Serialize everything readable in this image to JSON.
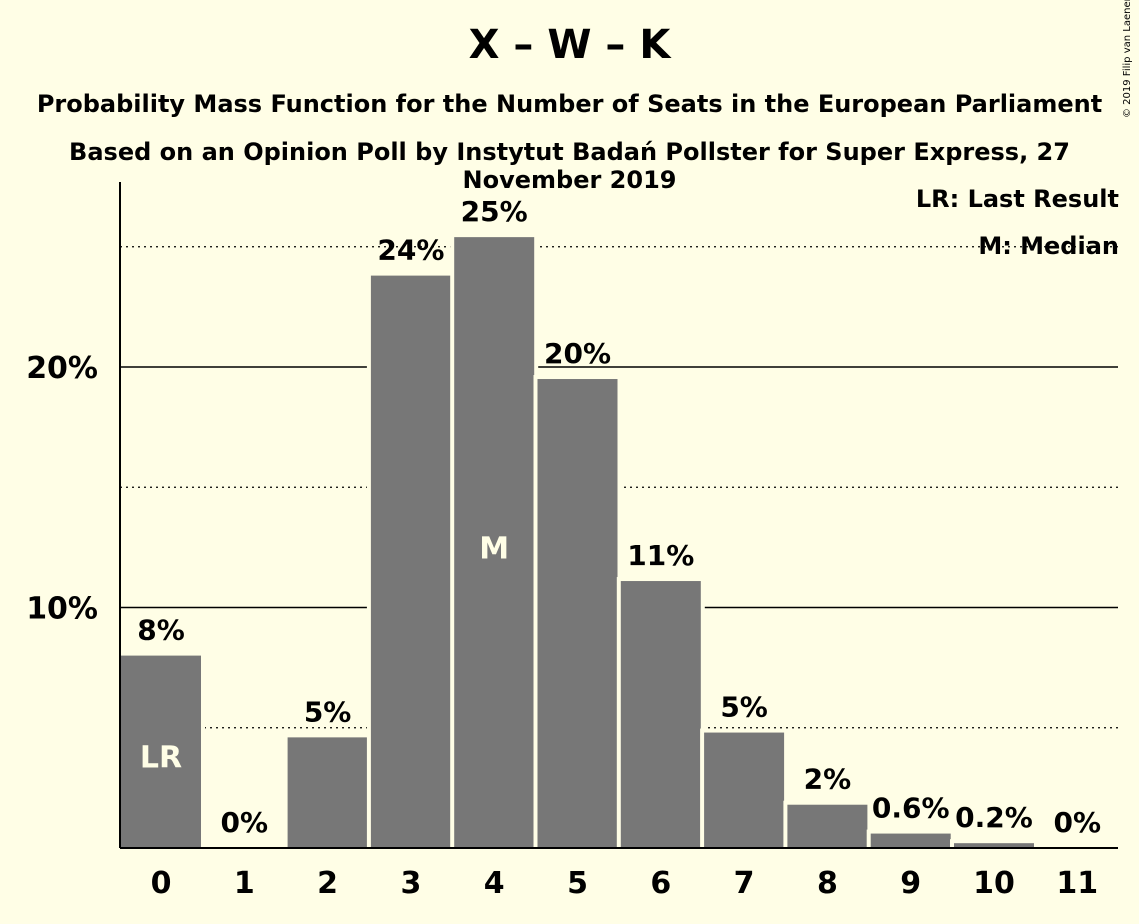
{
  "chart_data": {
    "type": "bar",
    "title": "X – W – K",
    "subtitle": "Probability Mass Function for the Number of Seats in the European Parliament",
    "subtitle2": "Based on an Opinion Poll by Instytut Badań Pollster for Super Express, 27 November 2019",
    "copyright": "© 2019 Filip van Laenen",
    "legend": {
      "placement": "top-right",
      "last_result": "LR: Last Result",
      "median": "M: Median"
    },
    "categories": [
      "0",
      "1",
      "2",
      "3",
      "4",
      "5",
      "6",
      "7",
      "8",
      "9",
      "10",
      "11"
    ],
    "values": [
      8.0,
      0.0,
      4.6,
      23.8,
      25.4,
      19.5,
      11.1,
      4.8,
      1.8,
      0.6,
      0.2,
      0.0
    ],
    "value_labels": [
      "8%",
      "0%",
      "5%",
      "24%",
      "25%",
      "20%",
      "11%",
      "5%",
      "2%",
      "0.6%",
      "0.2%",
      "0%"
    ],
    "bar_markers": {
      "0": "LR",
      "4": "M"
    },
    "yticks": [
      10,
      20
    ],
    "ytick_labels": [
      "10%",
      "20%"
    ],
    "minor_gridlines": [
      5,
      15,
      25
    ],
    "ylim": [
      0,
      27.8
    ],
    "bar_color": "#777777",
    "background_color": "#FFFEE6",
    "grid": true
  }
}
